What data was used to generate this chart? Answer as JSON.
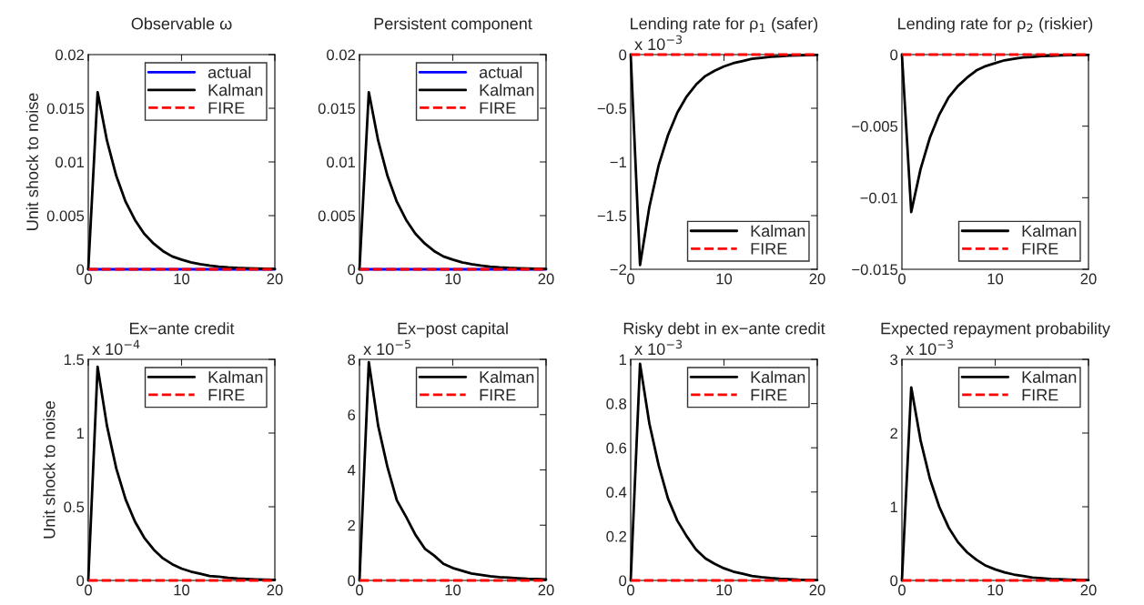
{
  "chart_data": [
    {
      "type": "line",
      "title": "Observable ω",
      "ylabel": "Unit shock to noise",
      "x": [
        0,
        1,
        2,
        3,
        4,
        5,
        6,
        7,
        8,
        9,
        10,
        11,
        12,
        13,
        14,
        15,
        16,
        17,
        18,
        19,
        20
      ],
      "xlim": [
        0,
        20
      ],
      "xticks": [
        0,
        10,
        20
      ],
      "ylim": [
        0,
        0.02
      ],
      "yticks": [
        0,
        0.005,
        0.01,
        0.015,
        0.02
      ],
      "legend": "top right",
      "grid": false,
      "series": [
        {
          "name": "actual",
          "color": "#0000ff",
          "line_style": "solid",
          "values": [
            0,
            0,
            0,
            0,
            0,
            0,
            0,
            0,
            0,
            0,
            0,
            0,
            0,
            0,
            0,
            0,
            0,
            0,
            0,
            0,
            0
          ]
        },
        {
          "name": "Kalman",
          "color": "#000000",
          "line_style": "solid",
          "values": [
            0,
            0.0165,
            0.012,
            0.0087,
            0.0063,
            0.0046,
            0.0033,
            0.0024,
            0.0017,
            0.0012,
            0.0009,
            0.00065,
            0.00047,
            0.00034,
            0.00025,
            0.00018,
            0.00013,
            0.0001,
            7e-05,
            5e-05,
            4e-05
          ]
        },
        {
          "name": "FIRE",
          "color": "#ff0000",
          "line_style": "dashed",
          "values": [
            0,
            0,
            0,
            0,
            0,
            0,
            0,
            0,
            0,
            0,
            0,
            0,
            0,
            0,
            0,
            0,
            0,
            0,
            0,
            0,
            0
          ]
        }
      ]
    },
    {
      "type": "line",
      "title": "Persistent component",
      "x": [
        0,
        1,
        2,
        3,
        4,
        5,
        6,
        7,
        8,
        9,
        10,
        11,
        12,
        13,
        14,
        15,
        16,
        17,
        18,
        19,
        20
      ],
      "xlim": [
        0,
        20
      ],
      "xticks": [
        0,
        10,
        20
      ],
      "ylim": [
        0,
        0.02
      ],
      "yticks": [
        0,
        0.005,
        0.01,
        0.015,
        0.02
      ],
      "legend": "top right",
      "grid": false,
      "series": [
        {
          "name": "actual",
          "color": "#0000ff",
          "line_style": "solid",
          "values": [
            0,
            0,
            0,
            0,
            0,
            0,
            0,
            0,
            0,
            0,
            0,
            0,
            0,
            0,
            0,
            0,
            0,
            0,
            0,
            0,
            0
          ]
        },
        {
          "name": "Kalman",
          "color": "#000000",
          "line_style": "solid",
          "values": [
            0,
            0.0165,
            0.012,
            0.0087,
            0.0063,
            0.0046,
            0.0033,
            0.0024,
            0.0017,
            0.0012,
            0.0009,
            0.00065,
            0.00047,
            0.00034,
            0.00025,
            0.00018,
            0.00013,
            0.0001,
            7e-05,
            5e-05,
            4e-05
          ]
        },
        {
          "name": "FIRE",
          "color": "#ff0000",
          "line_style": "dashed",
          "values": [
            0,
            0,
            0,
            0,
            0,
            0,
            0,
            0,
            0,
            0,
            0,
            0,
            0,
            0,
            0,
            0,
            0,
            0,
            0,
            0,
            0
          ]
        }
      ]
    },
    {
      "type": "line",
      "title": "Lending rate for ρ$_{1}$ (safer)",
      "annotations": [
        "x 10$^{−3}$"
      ],
      "x": [
        0,
        1,
        2,
        3,
        4,
        5,
        6,
        7,
        8,
        9,
        10,
        11,
        12,
        13,
        14,
        15,
        16,
        17,
        18,
        19,
        20
      ],
      "xlim": [
        0,
        20
      ],
      "xticks": [
        0,
        10,
        20
      ],
      "ylim": [
        -2,
        0
      ],
      "yticks": [
        {
          "value": -2,
          "label": "−2"
        },
        {
          "value": -1.5,
          "label": "−1.5"
        },
        {
          "value": -1,
          "label": "−1"
        },
        {
          "value": -0.5,
          "label": "−0.5"
        },
        0
      ],
      "legend": "bottom right",
      "grid": false,
      "series": [
        {
          "name": "Kalman",
          "color": "#000000",
          "line_style": "solid",
          "values": [
            0,
            -1.96,
            -1.42,
            -1.03,
            -0.75,
            -0.54,
            -0.39,
            -0.28,
            -0.2,
            -0.15,
            -0.11,
            -0.08,
            -0.06,
            -0.04,
            -0.03,
            -0.02,
            -0.015,
            -0.01,
            -0.008,
            -0.006,
            -0.004
          ]
        },
        {
          "name": "FIRE",
          "color": "#ff0000",
          "line_style": "dashed",
          "values": [
            0,
            0,
            0,
            0,
            0,
            0,
            0,
            0,
            0,
            0,
            0,
            0,
            0,
            0,
            0,
            0,
            0,
            0,
            0,
            0,
            0
          ]
        }
      ]
    },
    {
      "type": "line",
      "title": "Lending rate for ρ$_{2}$ (riskier)",
      "x": [
        0,
        1,
        2,
        3,
        4,
        5,
        6,
        7,
        8,
        9,
        10,
        11,
        12,
        13,
        14,
        15,
        16,
        17,
        18,
        19,
        20
      ],
      "xlim": [
        0,
        20
      ],
      "xticks": [
        0,
        10,
        20
      ],
      "ylim": [
        -0.015,
        0
      ],
      "yticks": [
        {
          "value": -0.015,
          "label": "−0.015"
        },
        {
          "value": -0.01,
          "label": "−0.01"
        },
        {
          "value": -0.005,
          "label": "−0.005"
        },
        0
      ],
      "legend": "bottom right",
      "grid": false,
      "series": [
        {
          "name": "Kalman",
          "color": "#000000",
          "line_style": "solid",
          "values": [
            0,
            -0.011,
            -0.008,
            -0.0058,
            -0.0042,
            -0.003,
            -0.0022,
            -0.0016,
            -0.0011,
            -0.0008,
            -0.0006,
            -0.0004,
            -0.0003,
            -0.0002,
            -0.00016,
            -0.00011,
            -8e-05,
            -6e-05,
            -4e-05,
            -3e-05,
            -2e-05
          ]
        },
        {
          "name": "FIRE",
          "color": "#ff0000",
          "line_style": "dashed",
          "values": [
            0,
            0,
            0,
            0,
            0,
            0,
            0,
            0,
            0,
            0,
            0,
            0,
            0,
            0,
            0,
            0,
            0,
            0,
            0,
            0,
            0
          ]
        }
      ]
    },
    {
      "type": "line",
      "title": "Ex−ante credit",
      "ylabel": "Unit shock to noise",
      "annotations": [
        "x 10$^{−4}$"
      ],
      "x": [
        0,
        1,
        2,
        3,
        4,
        5,
        6,
        7,
        8,
        9,
        10,
        11,
        12,
        13,
        14,
        15,
        16,
        17,
        18,
        19,
        20
      ],
      "xlim": [
        0,
        20
      ],
      "xticks": [
        0,
        10,
        20
      ],
      "ylim": [
        0,
        1.5
      ],
      "yticks": [
        0,
        0.5,
        1,
        1.5
      ],
      "legend": "top right",
      "grid": false,
      "series": [
        {
          "name": "Kalman",
          "color": "#000000",
          "line_style": "solid",
          "values": [
            0,
            1.45,
            1.05,
            0.76,
            0.55,
            0.4,
            0.29,
            0.21,
            0.15,
            0.11,
            0.08,
            0.06,
            0.045,
            0.03,
            0.025,
            0.018,
            0.013,
            0.01,
            0.007,
            0.005,
            0.004
          ]
        },
        {
          "name": "FIRE",
          "color": "#ff0000",
          "line_style": "dashed",
          "values": [
            0,
            0,
            0,
            0,
            0,
            0,
            0,
            0,
            0,
            0,
            0,
            0,
            0,
            0,
            0,
            0,
            0,
            0,
            0,
            0,
            0
          ]
        }
      ]
    },
    {
      "type": "line",
      "title": "Ex−post capital",
      "annotations": [
        "x 10$^{−5}$"
      ],
      "x": [
        0,
        1,
        2,
        3,
        4,
        5,
        6,
        7,
        8,
        9,
        10,
        11,
        12,
        13,
        14,
        15,
        16,
        17,
        18,
        19,
        20
      ],
      "xlim": [
        0,
        20
      ],
      "xticks": [
        0,
        10,
        20
      ],
      "ylim": [
        0,
        8
      ],
      "yticks": [
        0,
        2,
        4,
        6,
        8
      ],
      "legend": "top right",
      "grid": false,
      "series": [
        {
          "name": "Kalman",
          "color": "#000000",
          "line_style": "solid",
          "values": [
            0,
            7.9,
            5.6,
            4.1,
            2.9,
            2.3,
            1.65,
            1.15,
            0.9,
            0.6,
            0.45,
            0.35,
            0.25,
            0.2,
            0.15,
            0.12,
            0.1,
            0.08,
            0.06,
            0.05,
            0.04
          ]
        },
        {
          "name": "FIRE",
          "color": "#ff0000",
          "line_style": "dashed",
          "values": [
            0,
            0,
            0,
            0,
            0,
            0,
            0,
            0,
            0,
            0,
            0,
            0,
            0,
            0,
            0,
            0,
            0,
            0,
            0,
            0,
            0
          ]
        }
      ]
    },
    {
      "type": "line",
      "title": "Risky debt in ex−ante credit",
      "annotations": [
        "x 10$^{−3}$"
      ],
      "x": [
        0,
        1,
        2,
        3,
        4,
        5,
        6,
        7,
        8,
        9,
        10,
        11,
        12,
        13,
        14,
        15,
        16,
        17,
        18,
        19,
        20
      ],
      "xlim": [
        0,
        20
      ],
      "xticks": [
        0,
        10,
        20
      ],
      "ylim": [
        0,
        1
      ],
      "yticks": [
        0,
        0.2,
        0.4,
        0.6,
        0.8,
        1
      ],
      "legend": "top right",
      "grid": false,
      "series": [
        {
          "name": "Kalman",
          "color": "#000000",
          "line_style": "solid",
          "values": [
            0,
            0.98,
            0.71,
            0.52,
            0.37,
            0.27,
            0.2,
            0.14,
            0.1,
            0.075,
            0.055,
            0.04,
            0.03,
            0.02,
            0.015,
            0.011,
            0.008,
            0.006,
            0.004,
            0.003,
            0.002
          ]
        },
        {
          "name": "FIRE",
          "color": "#ff0000",
          "line_style": "dashed",
          "values": [
            0,
            0,
            0,
            0,
            0,
            0,
            0,
            0,
            0,
            0,
            0,
            0,
            0,
            0,
            0,
            0,
            0,
            0,
            0,
            0,
            0
          ]
        }
      ]
    },
    {
      "type": "line",
      "title": "Expected repayment probability",
      "annotations": [
        "x 10$^{−3}$"
      ],
      "x": [
        0,
        1,
        2,
        3,
        4,
        5,
        6,
        7,
        8,
        9,
        10,
        11,
        12,
        13,
        14,
        15,
        16,
        17,
        18,
        19,
        20
      ],
      "xlim": [
        0,
        20
      ],
      "xticks": [
        0,
        10,
        20
      ],
      "ylim": [
        0,
        3
      ],
      "yticks": [
        0,
        1,
        2,
        3
      ],
      "legend": "top right",
      "grid": false,
      "series": [
        {
          "name": "Kalman",
          "color": "#000000",
          "line_style": "solid",
          "values": [
            0,
            2.62,
            1.9,
            1.38,
            1,
            0.72,
            0.52,
            0.38,
            0.28,
            0.2,
            0.15,
            0.11,
            0.08,
            0.06,
            0.04,
            0.03,
            0.02,
            0.016,
            0.012,
            0.008,
            0.006
          ]
        },
        {
          "name": "FIRE",
          "color": "#ff0000",
          "line_style": "dashed",
          "values": [
            0,
            0,
            0,
            0,
            0,
            0,
            0,
            0,
            0,
            0,
            0,
            0,
            0,
            0,
            0,
            0,
            0,
            0,
            0,
            0,
            0
          ]
        }
      ]
    }
  ]
}
